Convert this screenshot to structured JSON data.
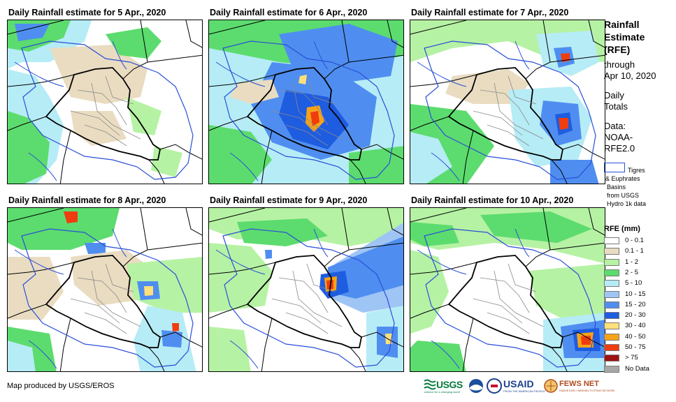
{
  "panels": [
    {
      "title": "Daily Rainfall estimate for 5 Apr., 2020"
    },
    {
      "title": "Daily Rainfall estimate for 6 Apr., 2020"
    },
    {
      "title": "Daily Rainfall estimate for 7 Apr., 2020"
    },
    {
      "title": "Daily Rainfall estimate for 8 Apr., 2020"
    },
    {
      "title": "Daily Rainfall estimate for 9 Apr., 2020"
    },
    {
      "title": "Daily Rainfall estimate for 10 Apr., 2020"
    }
  ],
  "sidebar": {
    "title_line1": "Rainfall",
    "title_line2": "Estimate",
    "title_line3": "(RFE)",
    "through_line1": "through",
    "through_line2": "Apr 10, 2020",
    "daily_line1": "Daily",
    "daily_line2": "Totals",
    "data_line1": "Data:",
    "data_line2": "NOAA-",
    "data_line3": "RFE2.0",
    "basin_label_line1": "Tigres",
    "basin_label_line2": "& Euphrates",
    "basin_label_line3": "Basins",
    "basin_label_line4": "from USGS",
    "basin_label_line5": "Hydro 1k data",
    "legend_title": "RFE (mm)"
  },
  "legend": [
    {
      "label": "0 - 0.1",
      "color": "#ffffff"
    },
    {
      "label": "0.1 - 1",
      "color": "#e9dcc1"
    },
    {
      "label": "1 - 2",
      "color": "#b6f2a4"
    },
    {
      "label": "2 - 5",
      "color": "#5cdc6e"
    },
    {
      "label": "5 - 10",
      "color": "#b6ecf6"
    },
    {
      "label": "10 - 15",
      "color": "#9fc5f5"
    },
    {
      "label": "15 - 20",
      "color": "#4f8ef0"
    },
    {
      "label": "20 - 30",
      "color": "#1e5ce0"
    },
    {
      "label": "30 - 40",
      "color": "#ffe07a"
    },
    {
      "label": "40 - 50",
      "color": "#f7a319"
    },
    {
      "label": "50 - 75",
      "color": "#ef3d10"
    },
    {
      "label": "> 75",
      "color": "#9e1212"
    },
    {
      "label": "No Data",
      "color": "#a8a8a8"
    }
  ],
  "footer": {
    "credit": "Map produced by USGS/EROS"
  },
  "logos": {
    "usgs": "USGS",
    "usgs_tagline": "science for a changing world",
    "usaid": "USAID",
    "usaid_tagline": "FROM THE AMERICAN PEOPLE",
    "fewsnet": "FEWS NET",
    "fewsnet_tagline": "FAMINE EARLY WARNING SYSTEMS NETWORK"
  }
}
